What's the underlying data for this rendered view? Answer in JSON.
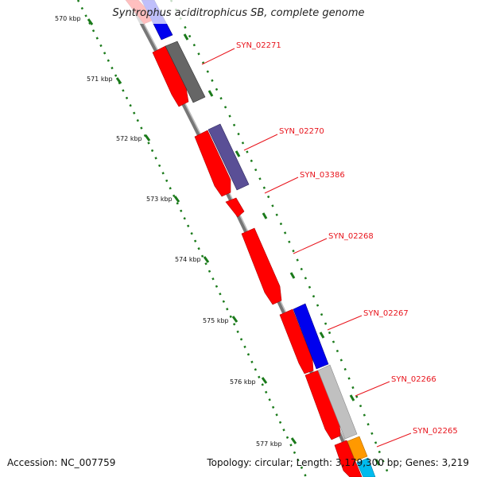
{
  "title": "Syntrophus aciditrophicus SB, complete genome",
  "accession": "Accession: NC_007759",
  "summary": "Topology: circular; Length: 3,179,300 bp; Genes: 3,219",
  "ticks": [
    "570 kbp",
    "571 kbp",
    "572 kbp",
    "573 kbp",
    "574 kbp",
    "575 kbp",
    "576 kbp",
    "577 kbp"
  ],
  "gene_labels": [
    "SYN_02271",
    "SYN_02270",
    "SYN_03386",
    "SYN_02268",
    "SYN_02267",
    "SYN_02266",
    "SYN_02265"
  ],
  "colors": {
    "forward_red": "#ff0000",
    "blue": "#0000ee",
    "dark_gray": "#666666",
    "slate": "#5a4f96",
    "light_gray": "#c0c0c0",
    "orange": "#ff9900",
    "cyan": "#00bbee",
    "backbone": "#808080",
    "tick_green": "#1a7a1a",
    "label_red": "#e8141c"
  }
}
